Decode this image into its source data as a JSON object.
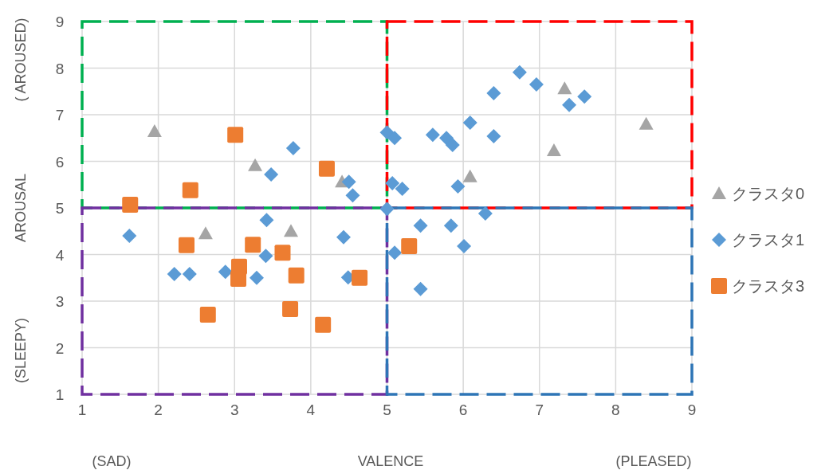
{
  "chart_data": {
    "type": "scatter",
    "xlabel": "VALENCE",
    "ylabel": "AROUSAL",
    "annotations": [
      "(SAD)",
      "(PLEASED)",
      "( AROUSED)",
      "(SLEEPY)"
    ],
    "xlim": [
      1,
      9
    ],
    "xticks": [
      1,
      2,
      3,
      4,
      5,
      6,
      7,
      8,
      9
    ],
    "ylim": [
      1,
      9
    ],
    "yticks": [
      1,
      2,
      3,
      4,
      5,
      6,
      7,
      8,
      9
    ],
    "grid": true,
    "legend": "right",
    "series": [
      {
        "name": "クラスタ0",
        "color": "#a5a5a5",
        "marker": "triangle",
        "x": [
          1.95,
          3.27,
          4.41,
          2.62,
          3.74,
          7.33,
          7.19,
          8.4,
          6.09
        ],
        "values": [
          6.64,
          5.91,
          5.56,
          4.45,
          4.5,
          7.56,
          6.23,
          6.8,
          5.67
        ]
      },
      {
        "name": "クラスタ1",
        "color": "#5b9bd5",
        "marker": "diamond",
        "x": [
          1.62,
          2.21,
          2.41,
          2.88,
          3.29,
          3.41,
          3.42,
          3.48,
          3.77,
          4.43,
          4.5,
          4.55,
          5.0,
          5.1,
          5.07,
          5.2,
          5.0,
          6.74,
          6.96,
          6.4,
          7.59,
          7.39,
          6.09,
          6.4,
          5.6,
          5.78,
          5.86,
          5.93,
          6.29,
          5.44,
          5.84,
          6.01,
          5.1,
          5.44,
          4.49
        ],
        "values": [
          4.4,
          3.58,
          3.58,
          3.63,
          3.5,
          3.97,
          4.74,
          5.72,
          6.28,
          4.37,
          5.56,
          5.27,
          6.62,
          6.5,
          5.53,
          5.41,
          4.98,
          7.91,
          7.65,
          7.46,
          7.39,
          7.21,
          6.83,
          6.54,
          6.57,
          6.5,
          6.35,
          5.46,
          4.88,
          4.62,
          4.62,
          4.18,
          4.04,
          3.26,
          3.51
        ]
      },
      {
        "name": "クラスタ3",
        "color": "#ed7d31",
        "marker": "square",
        "x": [
          3.01,
          4.21,
          2.42,
          1.63,
          2.37,
          3.24,
          3.63,
          3.06,
          3.05,
          3.81,
          4.64,
          2.65,
          3.73,
          4.16,
          5.29
        ],
        "values": [
          6.57,
          5.84,
          5.38,
          5.07,
          4.2,
          4.21,
          4.04,
          3.74,
          3.48,
          3.55,
          3.5,
          2.71,
          2.83,
          2.49,
          4.18
        ]
      }
    ]
  }
}
